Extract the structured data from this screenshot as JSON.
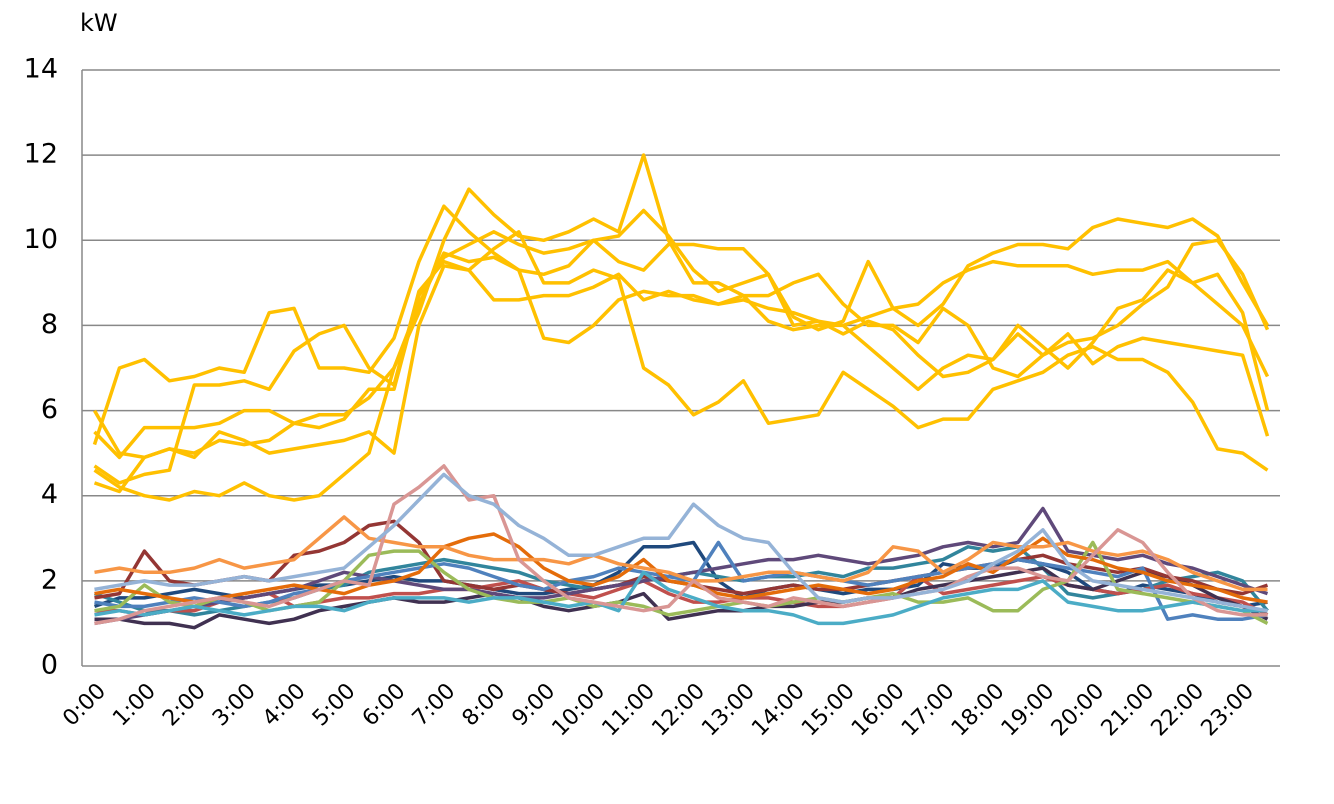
{
  "chart_data": {
    "type": "line",
    "y_label": "kW",
    "categories": [
      "0:00",
      null,
      "1:00",
      null,
      "2:00",
      null,
      "3:00",
      null,
      "4:00",
      null,
      "5:00",
      null,
      "6:00",
      null,
      "7:00",
      null,
      "8:00",
      null,
      "9:00",
      null,
      "10:00",
      null,
      "11:00",
      null,
      "12:00",
      null,
      "13:00",
      null,
      "14:00",
      null,
      "15:00",
      null,
      "16:00",
      null,
      "17:00",
      null,
      "18:00",
      null,
      "19:00",
      null,
      "20:00",
      null,
      "21:00",
      null,
      "22:00",
      null,
      "23:00",
      null
    ],
    "ylim": [
      0,
      14
    ],
    "yticks": [
      0,
      2,
      4,
      6,
      8,
      10,
      12,
      14
    ],
    "grid": true,
    "series": [
      {
        "color": "#1f497d",
        "values": [
          1.4,
          1.6,
          1.6,
          1.7,
          1.8,
          1.7,
          1.6,
          1.7,
          1.8,
          1.9,
          1.9,
          2.0,
          2.1,
          2.0,
          2.0,
          1.9,
          1.8,
          1.7,
          1.7,
          1.8,
          1.9,
          2.2,
          2.8,
          2.8,
          2.9,
          2.0,
          1.6,
          1.8,
          1.9,
          1.8,
          1.7,
          1.8,
          1.8,
          1.9,
          2.4,
          2.3,
          2.3,
          2.5,
          2.4,
          2.2,
          1.8,
          1.7,
          1.9,
          1.8,
          1.7,
          1.5,
          1.4,
          1.5
        ]
      },
      {
        "color": "#31859c",
        "values": [
          1.7,
          1.5,
          1.3,
          1.3,
          1.2,
          1.3,
          1.4,
          1.5,
          1.6,
          1.8,
          1.9,
          2.2,
          2.3,
          2.4,
          2.5,
          2.4,
          2.3,
          2.2,
          2.0,
          1.9,
          1.8,
          1.9,
          2.0,
          2.1,
          2.2,
          2.1,
          2.0,
          2.1,
          2.1,
          2.2,
          2.1,
          2.3,
          2.3,
          2.4,
          2.5,
          2.8,
          2.7,
          2.8,
          2.3,
          1.7,
          1.6,
          1.7,
          1.8,
          2.0,
          2.1,
          2.2,
          2.0,
          1.3
        ]
      },
      {
        "color": "#c0504d",
        "values": [
          1.3,
          1.3,
          1.2,
          1.3,
          1.3,
          1.5,
          1.6,
          1.7,
          1.4,
          1.5,
          1.6,
          1.6,
          1.7,
          1.7,
          1.8,
          1.8,
          1.9,
          2.0,
          1.8,
          1.7,
          1.6,
          1.8,
          2.0,
          1.7,
          1.5,
          1.5,
          1.6,
          1.6,
          1.5,
          1.4,
          1.4,
          1.5,
          1.6,
          2.1,
          1.7,
          1.8,
          1.9,
          2.0,
          2.1,
          1.9,
          1.8,
          1.7,
          1.8,
          1.9,
          1.7,
          1.6,
          1.5,
          1.2
        ]
      },
      {
        "color": "#403151",
        "values": [
          1.1,
          1.1,
          1.0,
          1.0,
          0.9,
          1.2,
          1.1,
          1.0,
          1.1,
          1.3,
          1.4,
          1.5,
          1.6,
          1.5,
          1.5,
          1.6,
          1.7,
          1.6,
          1.4,
          1.3,
          1.4,
          1.5,
          1.7,
          1.1,
          1.2,
          1.3,
          1.3,
          1.4,
          1.4,
          1.5,
          1.5,
          1.6,
          1.6,
          1.8,
          1.9,
          2.0,
          2.1,
          2.2,
          2.3,
          1.9,
          1.8,
          2.0,
          2.2,
          2.1,
          1.9,
          1.6,
          1.4,
          1.1
        ]
      },
      {
        "color": "#943634",
        "values": [
          1.6,
          1.7,
          2.7,
          2.0,
          1.9,
          2.0,
          2.1,
          2.0,
          2.6,
          2.7,
          2.9,
          3.3,
          3.4,
          2.9,
          2.0,
          1.9,
          1.8,
          1.9,
          1.8,
          1.7,
          1.8,
          1.9,
          2.1,
          2.0,
          1.9,
          1.8,
          1.7,
          1.8,
          1.9,
          1.8,
          1.8,
          1.9,
          2.0,
          2.1,
          2.2,
          2.3,
          2.4,
          2.5,
          2.6,
          2.4,
          2.3,
          2.2,
          2.3,
          2.1,
          2.0,
          1.8,
          1.7,
          1.9
        ]
      },
      {
        "color": "#5f497a",
        "values": [
          1.0,
          1.1,
          1.2,
          1.3,
          1.4,
          1.5,
          1.6,
          1.7,
          1.8,
          2.0,
          2.2,
          2.1,
          2.0,
          1.9,
          1.8,
          1.8,
          1.7,
          1.6,
          1.6,
          1.7,
          1.8,
          1.9,
          2.0,
          2.1,
          2.2,
          2.3,
          2.4,
          2.5,
          2.5,
          2.6,
          2.5,
          2.4,
          2.5,
          2.6,
          2.8,
          2.9,
          2.8,
          2.9,
          3.7,
          2.7,
          2.6,
          2.5,
          2.6,
          2.4,
          2.3,
          2.1,
          1.9,
          1.7
        ]
      },
      {
        "color": "#4f81bd",
        "values": [
          1.5,
          1.4,
          1.4,
          1.5,
          1.6,
          1.5,
          1.4,
          1.5,
          1.7,
          1.8,
          2.0,
          2.1,
          2.2,
          2.3,
          2.4,
          2.3,
          2.1,
          1.9,
          1.8,
          2.0,
          2.1,
          2.3,
          2.2,
          2.1,
          2.0,
          2.9,
          2.0,
          2.1,
          2.2,
          2.1,
          2.0,
          1.9,
          2.0,
          2.1,
          2.2,
          2.3,
          2.4,
          2.5,
          2.4,
          2.3,
          2.2,
          2.1,
          2.3,
          1.1,
          1.2,
          1.1,
          1.1,
          1.2
        ]
      },
      {
        "color": "#9bbb59",
        "values": [
          1.3,
          1.4,
          1.9,
          1.5,
          1.4,
          1.6,
          1.5,
          1.3,
          1.4,
          1.5,
          2.0,
          2.6,
          2.7,
          2.7,
          2.2,
          1.8,
          1.6,
          1.5,
          1.5,
          1.6,
          1.4,
          1.5,
          1.4,
          1.2,
          1.3,
          1.4,
          1.5,
          1.4,
          1.5,
          1.6,
          1.5,
          1.6,
          1.7,
          1.5,
          1.5,
          1.6,
          1.3,
          1.3,
          1.8,
          2.0,
          2.9,
          1.8,
          1.7,
          1.6,
          1.5,
          1.4,
          1.3,
          1.0
        ]
      },
      {
        "color": "#4bacc6",
        "values": [
          1.2,
          1.3,
          1.2,
          1.3,
          1.4,
          1.3,
          1.2,
          1.3,
          1.4,
          1.4,
          1.3,
          1.5,
          1.6,
          1.6,
          1.6,
          1.5,
          1.6,
          1.6,
          1.5,
          1.4,
          1.5,
          1.3,
          2.2,
          1.8,
          1.6,
          1.4,
          1.3,
          1.3,
          1.2,
          1.0,
          1.0,
          1.1,
          1.2,
          1.4,
          1.6,
          1.7,
          1.8,
          1.8,
          2.0,
          1.5,
          1.4,
          1.3,
          1.3,
          1.4,
          1.5,
          1.4,
          1.3,
          1.3
        ]
      },
      {
        "color": "#e46c0a",
        "values": [
          1.7,
          1.8,
          1.7,
          1.6,
          1.5,
          1.6,
          1.7,
          1.8,
          1.9,
          1.8,
          1.7,
          1.9,
          2.0,
          2.2,
          2.8,
          3.0,
          3.1,
          2.8,
          2.3,
          2.0,
          1.9,
          2.1,
          2.5,
          2.0,
          1.9,
          1.7,
          1.6,
          1.7,
          1.8,
          1.9,
          1.8,
          1.7,
          1.8,
          2.0,
          2.1,
          2.4,
          2.2,
          2.6,
          3.0,
          2.6,
          2.5,
          2.3,
          2.2,
          2.0,
          1.9,
          1.8,
          1.6,
          1.5
        ]
      },
      {
        "color": "#f79646",
        "values": [
          2.2,
          2.3,
          2.2,
          2.2,
          2.3,
          2.5,
          2.3,
          2.4,
          2.5,
          3.0,
          3.5,
          3.0,
          2.9,
          2.8,
          2.8,
          2.6,
          2.5,
          2.5,
          2.5,
          2.4,
          2.6,
          2.4,
          2.3,
          2.2,
          2.0,
          2.0,
          2.1,
          2.2,
          2.2,
          2.1,
          2.0,
          2.2,
          2.8,
          2.7,
          2.2,
          2.5,
          2.9,
          2.8,
          2.8,
          2.9,
          2.7,
          2.6,
          2.7,
          2.5,
          2.2,
          2.0,
          1.8,
          1.8
        ]
      },
      {
        "color": "#d99694",
        "values": [
          1.0,
          1.1,
          1.3,
          1.4,
          1.5,
          1.6,
          1.5,
          1.4,
          1.6,
          1.8,
          2.0,
          1.9,
          3.8,
          4.2,
          4.7,
          3.9,
          4.0,
          2.5,
          2.0,
          1.6,
          1.5,
          1.4,
          1.3,
          1.4,
          2.0,
          1.6,
          1.5,
          1.4,
          1.6,
          1.5,
          1.4,
          1.5,
          1.6,
          1.7,
          1.8,
          2.1,
          2.3,
          2.3,
          2.1,
          2.0,
          2.6,
          3.2,
          2.9,
          2.2,
          1.6,
          1.3,
          1.2,
          1.2
        ]
      },
      {
        "color": "#95b3d7",
        "values": [
          1.8,
          1.9,
          2.0,
          1.9,
          1.9,
          2.0,
          2.1,
          2.0,
          2.1,
          2.2,
          2.3,
          2.8,
          3.3,
          3.9,
          4.5,
          4.0,
          3.8,
          3.3,
          3.0,
          2.6,
          2.6,
          2.8,
          3.0,
          3.0,
          3.8,
          3.3,
          3.0,
          2.9,
          2.2,
          1.6,
          1.5,
          1.6,
          1.6,
          1.7,
          1.8,
          2.0,
          2.4,
          2.7,
          3.2,
          2.4,
          2.0,
          1.9,
          1.8,
          1.7,
          1.6,
          1.5,
          1.4,
          1.3
        ]
      },
      {
        "color": "#ffc000",
        "values": [
          6.0,
          5.0,
          4.9,
          5.1,
          5.0,
          5.3,
          5.2,
          5.3,
          5.7,
          5.9,
          5.9,
          6.3,
          7.0,
          8.3,
          10.0,
          11.2,
          10.6,
          10.1,
          10.0,
          10.2,
          10.5,
          10.2,
          12.0,
          10.0,
          9.0,
          9.0,
          8.7,
          8.7,
          9.0,
          9.2,
          8.5,
          8.0,
          8.0,
          7.6,
          8.4,
          8.0,
          7.0,
          6.8,
          7.3,
          7.6,
          7.7,
          8.0,
          8.5,
          8.9,
          9.9,
          10.0,
          9.2,
          7.9
        ]
      },
      {
        "color": "#ffc000",
        "values": [
          5.2,
          7.0,
          7.2,
          6.7,
          6.8,
          7.0,
          6.9,
          8.3,
          8.4,
          7.0,
          7.0,
          6.9,
          7.7,
          9.5,
          10.8,
          10.2,
          9.7,
          9.3,
          9.2,
          9.4,
          10.0,
          10.1,
          10.7,
          10.1,
          9.3,
          8.8,
          9.0,
          9.2,
          8.2,
          7.9,
          8.1,
          9.5,
          8.4,
          8.0,
          8.5,
          9.4,
          9.7,
          9.9,
          9.9,
          9.8,
          10.3,
          10.5,
          10.4,
          10.3,
          10.5,
          10.1,
          9.0,
          8.0
        ]
      },
      {
        "color": "#ffc000",
        "values": [
          5.5,
          4.9,
          5.6,
          5.6,
          5.6,
          5.7,
          6.0,
          6.0,
          5.7,
          5.6,
          5.8,
          6.5,
          6.5,
          8.7,
          9.6,
          9.9,
          10.2,
          9.9,
          9.7,
          9.8,
          10.0,
          9.5,
          9.3,
          9.9,
          9.9,
          9.8,
          9.8,
          9.2,
          8.0,
          8.1,
          8.0,
          8.2,
          8.4,
          8.5,
          9.0,
          9.3,
          9.5,
          9.4,
          9.4,
          9.4,
          9.2,
          9.3,
          9.3,
          9.5,
          9.0,
          8.5,
          8.0,
          6.8
        ]
      },
      {
        "color": "#ffc000",
        "values": [
          4.7,
          4.3,
          4.5,
          4.6,
          6.6,
          6.6,
          6.7,
          6.5,
          7.4,
          7.8,
          8.0,
          7.0,
          6.6,
          8.8,
          9.5,
          9.3,
          8.6,
          8.6,
          8.7,
          8.7,
          8.9,
          9.2,
          8.6,
          8.8,
          8.6,
          8.5,
          8.6,
          8.4,
          8.3,
          8.1,
          7.8,
          8.1,
          7.9,
          7.3,
          6.8,
          6.9,
          7.2,
          7.8,
          7.3,
          7.8,
          7.1,
          7.5,
          7.7,
          7.6,
          7.5,
          7.4,
          7.3,
          5.4
        ]
      },
      {
        "color": "#ffc000",
        "values": [
          4.6,
          4.2,
          4.0,
          3.9,
          4.1,
          4.0,
          4.3,
          4.0,
          3.9,
          4.0,
          4.5,
          5.0,
          7.0,
          8.5,
          9.7,
          9.5,
          9.6,
          9.3,
          7.7,
          7.6,
          8.0,
          8.6,
          8.8,
          8.7,
          8.7,
          8.5,
          8.7,
          8.1,
          7.9,
          8.0,
          8.0,
          7.5,
          7.0,
          6.5,
          7.0,
          7.3,
          7.2,
          8.0,
          7.5,
          7.0,
          7.6,
          8.4,
          8.6,
          9.3,
          9.0,
          9.2,
          8.3,
          6.0
        ]
      },
      {
        "color": "#ffc000",
        "values": [
          4.3,
          4.1,
          4.9,
          5.1,
          4.9,
          5.5,
          5.3,
          5.0,
          5.1,
          5.2,
          5.3,
          5.5,
          5.0,
          8.0,
          9.4,
          9.3,
          9.8,
          10.2,
          9.0,
          9.0,
          9.3,
          9.1,
          7.0,
          6.6,
          5.9,
          6.2,
          6.7,
          5.7,
          5.8,
          5.9,
          6.9,
          6.5,
          6.1,
          5.6,
          5.8,
          5.8,
          6.5,
          6.7,
          6.9,
          7.3,
          7.5,
          7.2,
          7.2,
          6.9,
          6.2,
          5.1,
          5.0,
          4.6
        ]
      }
    ]
  }
}
